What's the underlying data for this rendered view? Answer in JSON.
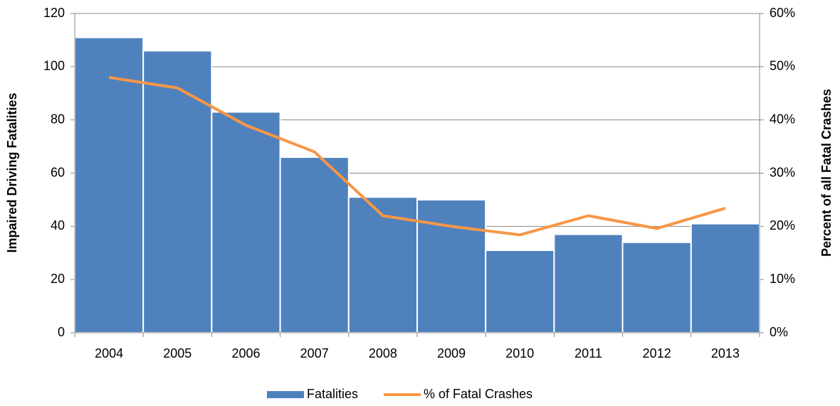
{
  "chart_data": {
    "type": "bar_line",
    "categories": [
      "2004",
      "2005",
      "2006",
      "2007",
      "2008",
      "2009",
      "2010",
      "2011",
      "2012",
      "2013"
    ],
    "series": [
      {
        "name": "Fatalities",
        "type": "bar",
        "color": "#4f81bd",
        "values": [
          111,
          106,
          83,
          66,
          51,
          50,
          31,
          37,
          34,
          41
        ]
      },
      {
        "name": "% of Fatal Crashes",
        "type": "line",
        "axis": "y2",
        "color": "#f79646",
        "values": [
          48,
          46,
          39,
          34,
          22,
          20,
          18.4,
          22,
          19.6,
          23.4
        ]
      }
    ],
    "ylabel": "Impaired Driving Fatalities",
    "y2label": "Percent of all Fatal Crashes",
    "ylim": [
      0,
      120
    ],
    "yticks": [
      0,
      20,
      40,
      60,
      80,
      100,
      120
    ],
    "y2lim": [
      0,
      60
    ],
    "y2ticks": [
      {
        "value": 0,
        "label": "0%"
      },
      {
        "value": 10,
        "label": "10%"
      },
      {
        "value": 20,
        "label": "20%"
      },
      {
        "value": 30,
        "label": "30%"
      },
      {
        "value": 40,
        "label": "40%"
      },
      {
        "value": 50,
        "label": "50%"
      },
      {
        "value": 60,
        "label": "60%"
      }
    ],
    "grid": true,
    "legend": "bottom"
  }
}
